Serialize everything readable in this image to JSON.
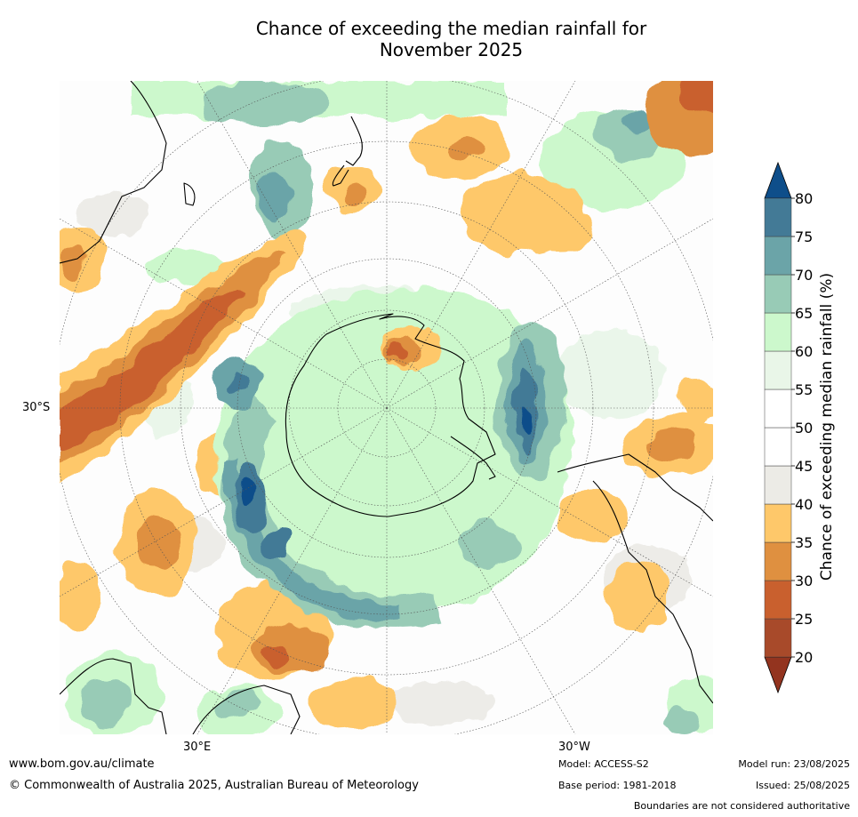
{
  "title": {
    "line1": "Chance of exceeding the median rainfall for",
    "line2": "November 2025"
  },
  "map": {
    "projection": "south-polar-stereographic",
    "lat_labels": [
      "30°S"
    ],
    "lon_labels": [
      "30°E",
      "30°W"
    ],
    "colors": {
      "c20_25": "#a84a2a",
      "c25_30": "#c9602e",
      "c30_35": "#df9040",
      "c35_40": "#fec86a",
      "c40_45": "#ecebe6",
      "c45_55": "#ffffff",
      "c55_60": "#e9f6e8",
      "c60_65": "#ccf8cc",
      "c65_70": "#98cbb6",
      "c70_75": "#6ba4a8",
      "c75_80": "#437a96",
      "c80": "#0e4e8a"
    }
  },
  "colorbar": {
    "label": "Chance of exceeding median rainfall (%)",
    "ticks": [
      "20",
      "25",
      "30",
      "35",
      "40",
      "45",
      "50",
      "55",
      "60",
      "65",
      "70",
      "75",
      "80"
    ],
    "colors": [
      "#a84a2a",
      "#c9602e",
      "#df9040",
      "#fec86a",
      "#ecebe6",
      "#ffffff",
      "#ffffff",
      "#e9f6e8",
      "#ccf8cc",
      "#98cbb6",
      "#6ba4a8",
      "#437a96"
    ],
    "under_color": "#93341f",
    "over_color": "#0e4e8a"
  },
  "footer": {
    "website": "www.bom.gov.au/climate",
    "copyright": "© Commonwealth of Australia 2025, Australian Bureau of Meteorology",
    "model": "Model: ACCESS-S2",
    "base_period": "Base period: 1981-2018",
    "model_run": "Model run: 23/08/2025",
    "issued": "Issued: 25/08/2025",
    "disclaimer": "Boundaries are not considered authoritative"
  }
}
